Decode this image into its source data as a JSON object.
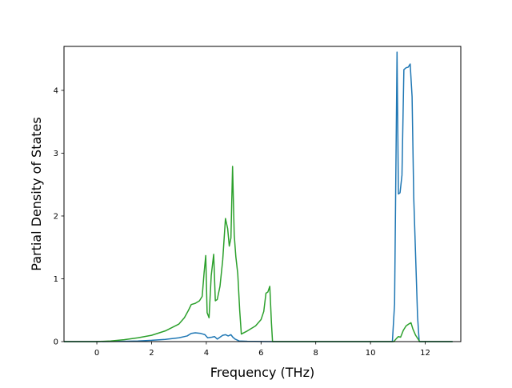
{
  "chart_data": {
    "type": "line",
    "xlabel": "Frequency (THz)",
    "ylabel": "Partial Density of States",
    "xlim": [
      -1.2,
      13.3
    ],
    "ylim": [
      0,
      4.7
    ],
    "xticks": [
      0,
      2,
      4,
      6,
      8,
      10,
      12
    ],
    "yticks": [
      0,
      1,
      2,
      3,
      4
    ],
    "grid": false,
    "series": [
      {
        "color": "#1f77b4",
        "points": [
          [
            -1.2,
            0
          ],
          [
            -0.5,
            0
          ],
          [
            0,
            0
          ],
          [
            0.5,
            0.002
          ],
          [
            1.0,
            0.005
          ],
          [
            1.5,
            0.01
          ],
          [
            2.0,
            0.02
          ],
          [
            2.5,
            0.035
          ],
          [
            3.0,
            0.06
          ],
          [
            3.3,
            0.09
          ],
          [
            3.45,
            0.13
          ],
          [
            3.6,
            0.14
          ],
          [
            3.8,
            0.13
          ],
          [
            3.95,
            0.11
          ],
          [
            4.05,
            0.06
          ],
          [
            4.2,
            0.07
          ],
          [
            4.3,
            0.08
          ],
          [
            4.4,
            0.04
          ],
          [
            4.5,
            0.07
          ],
          [
            4.6,
            0.1
          ],
          [
            4.7,
            0.11
          ],
          [
            4.8,
            0.09
          ],
          [
            4.9,
            0.11
          ],
          [
            4.97,
            0.07
          ],
          [
            5.05,
            0.04
          ],
          [
            5.2,
            0.01
          ],
          [
            5.5,
            0.005
          ],
          [
            6.0,
            0.002
          ],
          [
            6.42,
            0
          ],
          [
            7.0,
            0
          ],
          [
            8.0,
            0
          ],
          [
            9.0,
            0
          ],
          [
            10.0,
            0
          ],
          [
            10.8,
            0
          ],
          [
            10.88,
            0.6
          ],
          [
            10.97,
            4.61
          ],
          [
            11.02,
            2.35
          ],
          [
            11.08,
            2.37
          ],
          [
            11.15,
            2.65
          ],
          [
            11.22,
            4.33
          ],
          [
            11.3,
            4.36
          ],
          [
            11.38,
            4.37
          ],
          [
            11.45,
            4.42
          ],
          [
            11.52,
            3.9
          ],
          [
            11.58,
            2.3
          ],
          [
            11.72,
            0.4
          ],
          [
            11.78,
            0
          ],
          [
            12.0,
            0
          ],
          [
            13.0,
            0
          ]
        ]
      },
      {
        "color": "#2ca02c",
        "points": [
          [
            -1.2,
            0
          ],
          [
            -0.5,
            0
          ],
          [
            0,
            0
          ],
          [
            0.5,
            0.01
          ],
          [
            1.0,
            0.03
          ],
          [
            1.5,
            0.06
          ],
          [
            2.0,
            0.1
          ],
          [
            2.5,
            0.17
          ],
          [
            3.0,
            0.28
          ],
          [
            3.2,
            0.38
          ],
          [
            3.35,
            0.5
          ],
          [
            3.45,
            0.59
          ],
          [
            3.6,
            0.61
          ],
          [
            3.75,
            0.65
          ],
          [
            3.85,
            0.72
          ],
          [
            3.92,
            1.1
          ],
          [
            3.98,
            1.37
          ],
          [
            4.03,
            0.46
          ],
          [
            4.1,
            0.38
          ],
          [
            4.18,
            1.05
          ],
          [
            4.27,
            1.39
          ],
          [
            4.33,
            0.65
          ],
          [
            4.4,
            0.67
          ],
          [
            4.5,
            0.88
          ],
          [
            4.6,
            1.3
          ],
          [
            4.7,
            1.96
          ],
          [
            4.78,
            1.8
          ],
          [
            4.84,
            1.52
          ],
          [
            4.9,
            1.65
          ],
          [
            4.96,
            2.79
          ],
          [
            5.02,
            1.7
          ],
          [
            5.08,
            1.35
          ],
          [
            5.15,
            1.08
          ],
          [
            5.22,
            0.5
          ],
          [
            5.28,
            0.12
          ],
          [
            5.5,
            0.17
          ],
          [
            5.8,
            0.25
          ],
          [
            6.0,
            0.35
          ],
          [
            6.1,
            0.48
          ],
          [
            6.18,
            0.77
          ],
          [
            6.25,
            0.79
          ],
          [
            6.32,
            0.88
          ],
          [
            6.38,
            0.3
          ],
          [
            6.42,
            0
          ],
          [
            7.0,
            0
          ],
          [
            8.0,
            0
          ],
          [
            9.0,
            0
          ],
          [
            10.0,
            0
          ],
          [
            10.85,
            0
          ],
          [
            10.95,
            0.05
          ],
          [
            11.02,
            0.08
          ],
          [
            11.1,
            0.07
          ],
          [
            11.2,
            0.18
          ],
          [
            11.3,
            0.25
          ],
          [
            11.4,
            0.28
          ],
          [
            11.48,
            0.3
          ],
          [
            11.55,
            0.2
          ],
          [
            11.65,
            0.1
          ],
          [
            11.8,
            0
          ],
          [
            12.0,
            0
          ],
          [
            13.0,
            0
          ]
        ]
      }
    ]
  }
}
